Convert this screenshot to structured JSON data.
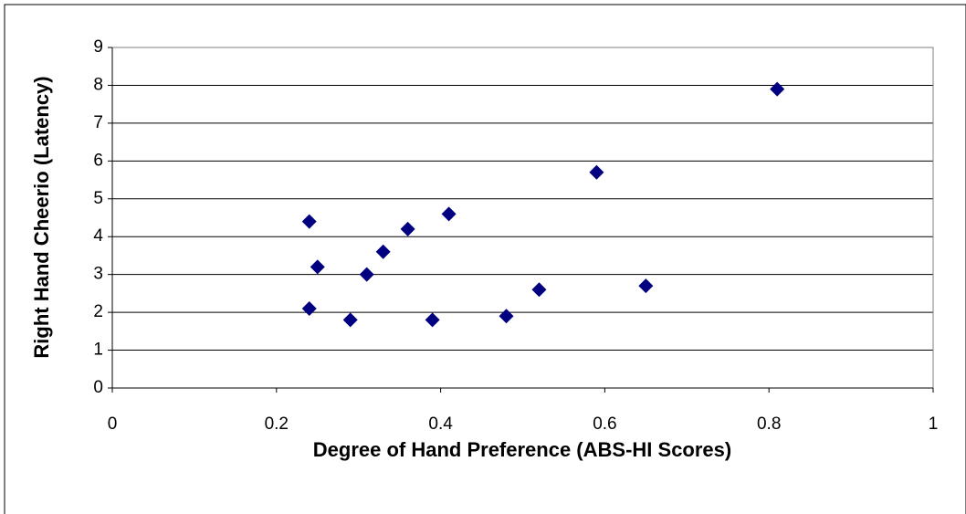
{
  "chart_data": {
    "type": "scatter",
    "xlabel": "Degree of Hand Preference (ABS-HI Scores)",
    "ylabel": "Right Hand Cheerio (Latency)",
    "x": [
      0.24,
      0.24,
      0.25,
      0.29,
      0.31,
      0.33,
      0.36,
      0.39,
      0.41,
      0.48,
      0.52,
      0.59,
      0.65,
      0.81
    ],
    "values": [
      4.4,
      2.1,
      3.2,
      1.8,
      3.0,
      3.6,
      4.2,
      1.8,
      4.6,
      1.9,
      2.6,
      5.7,
      2.7,
      7.9
    ],
    "color": "#000080",
    "xlim": [
      0,
      1
    ],
    "xticks": [
      0,
      0.2,
      0.4,
      0.6,
      0.8,
      1
    ],
    "ylim": [
      0,
      9
    ],
    "yticks": [
      0,
      1,
      2,
      3,
      4,
      5,
      6,
      7,
      8,
      9
    ],
    "grid": true
  }
}
